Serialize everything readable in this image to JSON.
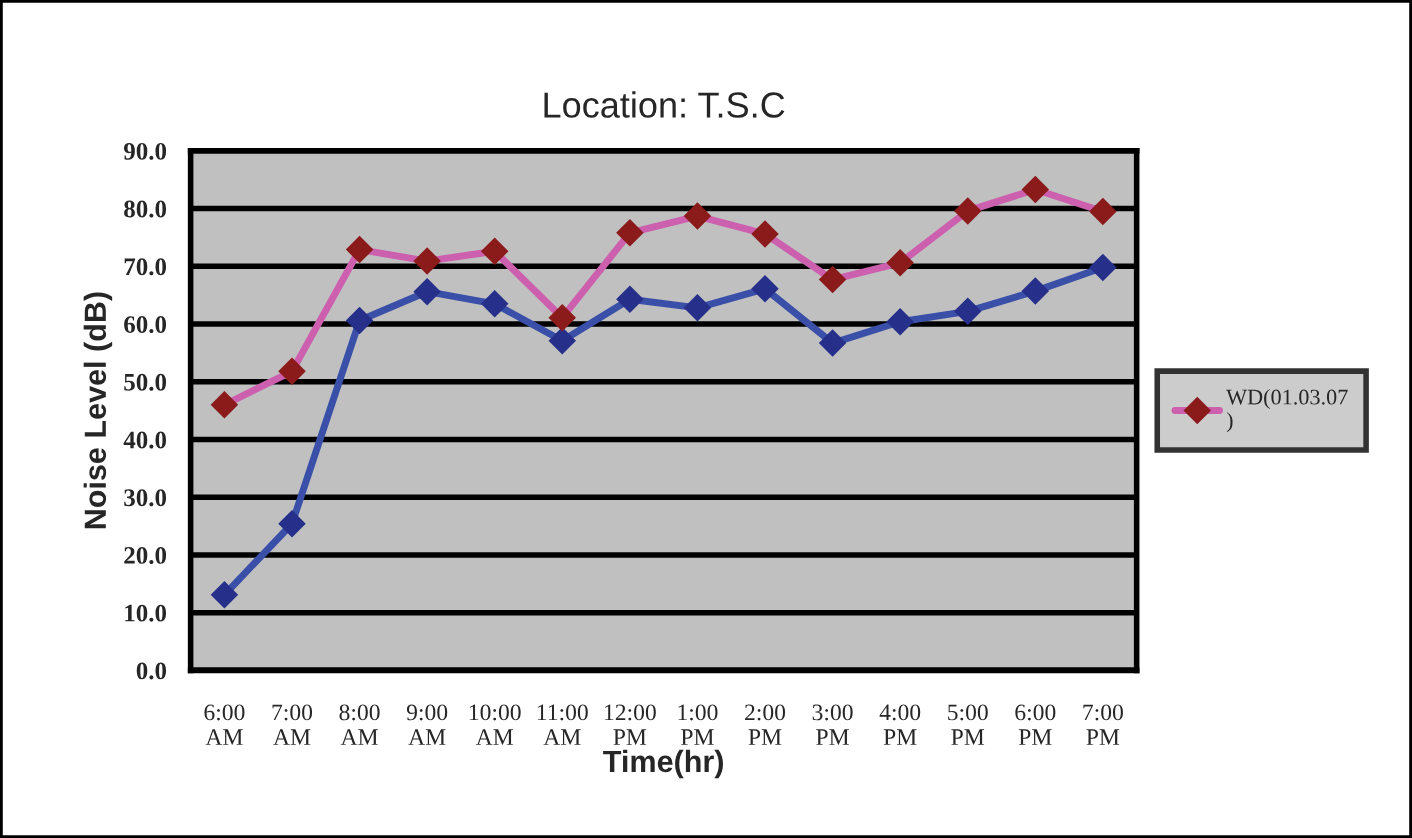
{
  "chart_data": {
    "type": "line",
    "title": "Location: T.S.C",
    "xlabel": "Time(hr)",
    "ylabel": "Noise Level (dB)",
    "categories": [
      "6:00\nAM",
      "7:00\nAM",
      "8:00\nAM",
      "9:00\nAM",
      "10:00\nAM",
      "11:00\nAM",
      "12:00\nPM",
      "1:00\nPM",
      "2:00\nPM",
      "3:00\nPM",
      "4:00\nPM",
      "5:00\nPM",
      "6:00\nPM",
      "7:00\nPM"
    ],
    "series": [
      {
        "color": "#3a4fa8",
        "values": [
          13.1,
          25.4,
          60.6,
          65.6,
          63.5,
          57.1,
          64.3,
          62.8,
          66.1,
          56.7,
          60.4,
          62.2,
          65.7,
          69.8
        ]
      },
      {
        "name": "WD(01.03.07 )",
        "color": "#cc5fae",
        "values": [
          46.0,
          51.8,
          72.9,
          70.9,
          72.6,
          61.1,
          75.8,
          78.7,
          75.6,
          67.7,
          70.6,
          79.6,
          83.3,
          79.5
        ]
      }
    ],
    "ylim": [
      0,
      90
    ],
    "yticks": [
      {
        "value": 0,
        "label": "0.0"
      },
      {
        "value": 10,
        "label": "10.0"
      },
      {
        "value": 20,
        "label": "20.0"
      },
      {
        "value": 30,
        "label": "30.0"
      },
      {
        "value": 40,
        "label": "40.0"
      },
      {
        "value": 50,
        "label": "50.0"
      },
      {
        "value": 60,
        "label": "60.0"
      },
      {
        "value": 70,
        "label": "70.0"
      },
      {
        "value": 80,
        "label": "80.0"
      },
      {
        "value": 90,
        "label": "90.0"
      }
    ],
    "grid": "y",
    "legend": "right",
    "marker": "diamond",
    "line_style": "solid"
  }
}
